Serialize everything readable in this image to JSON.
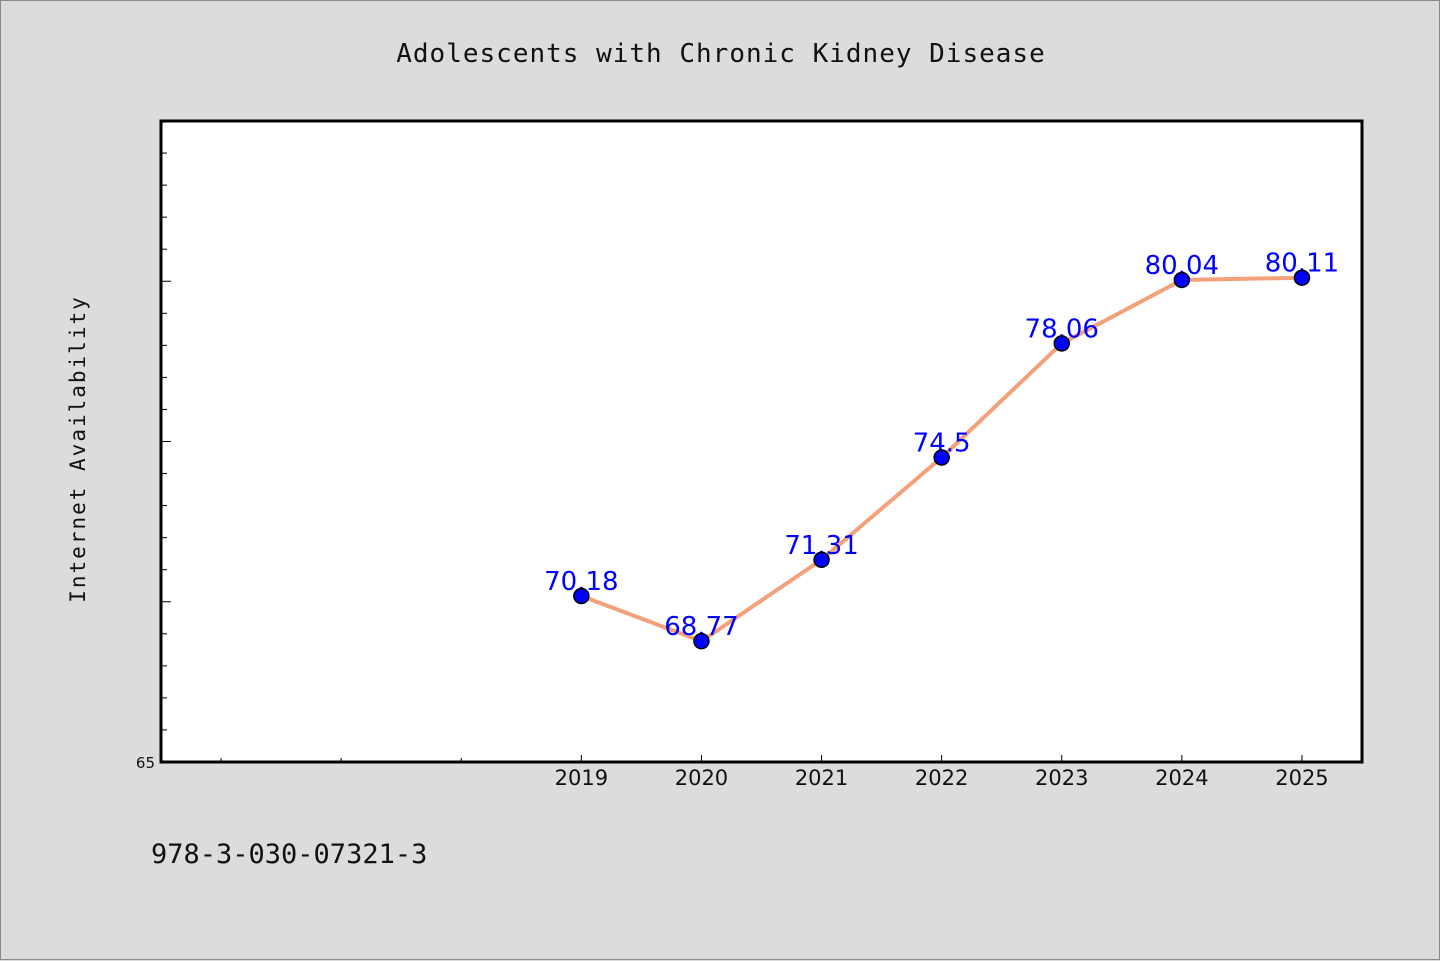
{
  "colors": {
    "background": "#dcdcdc",
    "plot_background": "#ffffff",
    "line": "#f4a07a",
    "marker": "#0000ff",
    "data_label": "#0000ff"
  },
  "footer": {
    "code": "978-3-030-07321-3"
  },
  "chart_data": {
    "type": "line",
    "title": "Adolescents with Chronic Kidney Disease",
    "xlabel": "",
    "ylabel": "Internet Availability",
    "x_tick_labels": [
      "2019",
      "2020",
      "2021",
      "2022",
      "2023",
      "2024",
      "2025"
    ],
    "x": [
      2019,
      2020,
      2021,
      2022,
      2023,
      2024,
      2025
    ],
    "xlim": [
      2015.5,
      2025.5
    ],
    "y_tick_labels": [
      {
        "value": 65,
        "label": "65"
      }
    ],
    "ylim": [
      65,
      85
    ],
    "grid": false,
    "series": [
      {
        "values": [
          70.18,
          68.77,
          71.31,
          74.5,
          78.06,
          80.04,
          80.11
        ],
        "labels": [
          "70.18",
          "68.77",
          "71.31",
          "74.5",
          "78.06",
          "80.04",
          "80.11"
        ]
      }
    ]
  }
}
